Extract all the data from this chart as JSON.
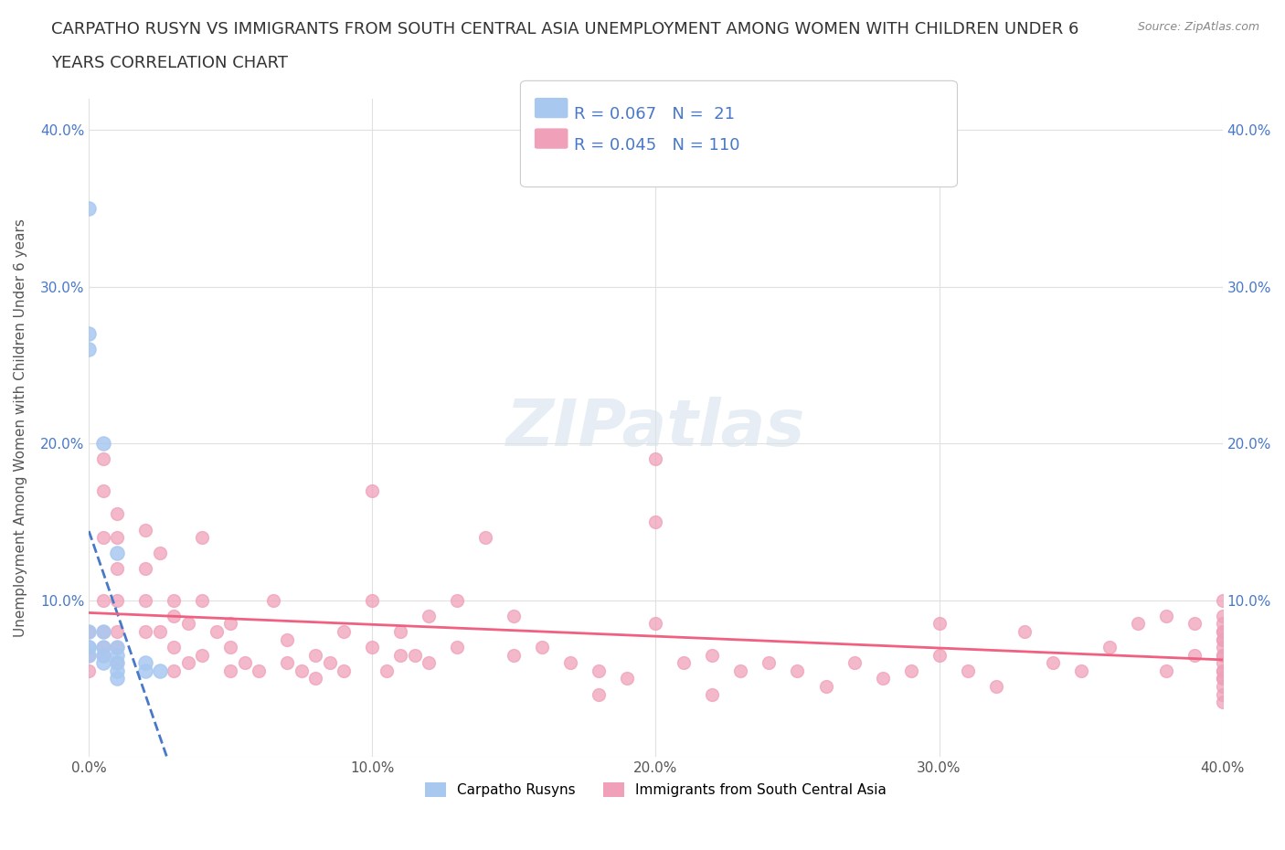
{
  "title_line1": "CARPATHO RUSYN VS IMMIGRANTS FROM SOUTH CENTRAL ASIA UNEMPLOYMENT AMONG WOMEN WITH CHILDREN UNDER 6",
  "title_line2": "YEARS CORRELATION CHART",
  "source": "Source: ZipAtlas.com",
  "ylabel": "Unemployment Among Women with Children Under 6 years",
  "xlim": [
    0.0,
    0.4
  ],
  "ylim": [
    0.0,
    0.42
  ],
  "xticks": [
    0.0,
    0.1,
    0.2,
    0.3,
    0.4
  ],
  "yticks": [
    0.0,
    0.1,
    0.2,
    0.3,
    0.4
  ],
  "xtick_labels": [
    "0.0%",
    "10.0%",
    "20.0%",
    "30.0%",
    "40.0%"
  ],
  "ytick_labels": [
    "",
    "10.0%",
    "20.0%",
    "30.0%",
    "40.0%"
  ],
  "legend": {
    "carpatho_label": "Carpatho Rusyns",
    "immigrants_label": "Immigrants from South Central Asia",
    "carpatho_R": "0.067",
    "carpatho_N": "21",
    "immigrants_R": "0.045",
    "immigrants_N": "110"
  },
  "carpatho_color": "#a8c8f0",
  "immigrants_color": "#f0a0b8",
  "carpatho_line_color": "#4878c8",
  "immigrants_line_color": "#f06080",
  "background_color": "#ffffff",
  "grid_color": "#e0e0e0",
  "carpatho_x": [
    0.0,
    0.0,
    0.0,
    0.0,
    0.0,
    0.0,
    0.0,
    0.005,
    0.005,
    0.005,
    0.005,
    0.005,
    0.01,
    0.01,
    0.01,
    0.01,
    0.01,
    0.01,
    0.02,
    0.02,
    0.025
  ],
  "carpatho_y": [
    0.35,
    0.27,
    0.26,
    0.08,
    0.07,
    0.07,
    0.065,
    0.2,
    0.08,
    0.07,
    0.065,
    0.06,
    0.13,
    0.07,
    0.065,
    0.06,
    0.055,
    0.05,
    0.06,
    0.055,
    0.055
  ],
  "immigrants_x": [
    0.0,
    0.0,
    0.0,
    0.005,
    0.005,
    0.005,
    0.005,
    0.005,
    0.005,
    0.005,
    0.01,
    0.01,
    0.01,
    0.01,
    0.01,
    0.01,
    0.01,
    0.02,
    0.02,
    0.02,
    0.02,
    0.025,
    0.025,
    0.03,
    0.03,
    0.03,
    0.03,
    0.035,
    0.035,
    0.04,
    0.04,
    0.04,
    0.045,
    0.05,
    0.05,
    0.05,
    0.055,
    0.06,
    0.065,
    0.07,
    0.07,
    0.075,
    0.08,
    0.08,
    0.085,
    0.09,
    0.09,
    0.1,
    0.1,
    0.1,
    0.105,
    0.11,
    0.11,
    0.115,
    0.12,
    0.12,
    0.13,
    0.13,
    0.14,
    0.15,
    0.15,
    0.16,
    0.17,
    0.18,
    0.18,
    0.19,
    0.2,
    0.2,
    0.2,
    0.21,
    0.22,
    0.22,
    0.23,
    0.24,
    0.25,
    0.26,
    0.27,
    0.28,
    0.29,
    0.3,
    0.3,
    0.31,
    0.32,
    0.33,
    0.34,
    0.35,
    0.36,
    0.37,
    0.38,
    0.38,
    0.39,
    0.39,
    0.4,
    0.4,
    0.4,
    0.4,
    0.4,
    0.4,
    0.4,
    0.4,
    0.4,
    0.4,
    0.4,
    0.4,
    0.4,
    0.4,
    0.4,
    0.4,
    0.4,
    0.4
  ],
  "immigrants_y": [
    0.08,
    0.065,
    0.055,
    0.19,
    0.17,
    0.14,
    0.1,
    0.08,
    0.07,
    0.065,
    0.155,
    0.14,
    0.12,
    0.1,
    0.08,
    0.07,
    0.06,
    0.145,
    0.12,
    0.1,
    0.08,
    0.13,
    0.08,
    0.1,
    0.09,
    0.07,
    0.055,
    0.085,
    0.06,
    0.14,
    0.1,
    0.065,
    0.08,
    0.085,
    0.07,
    0.055,
    0.06,
    0.055,
    0.1,
    0.075,
    0.06,
    0.055,
    0.065,
    0.05,
    0.06,
    0.08,
    0.055,
    0.17,
    0.1,
    0.07,
    0.055,
    0.065,
    0.08,
    0.065,
    0.09,
    0.06,
    0.1,
    0.07,
    0.14,
    0.09,
    0.065,
    0.07,
    0.06,
    0.055,
    0.04,
    0.05,
    0.19,
    0.15,
    0.085,
    0.06,
    0.065,
    0.04,
    0.055,
    0.06,
    0.055,
    0.045,
    0.06,
    0.05,
    0.055,
    0.085,
    0.065,
    0.055,
    0.045,
    0.08,
    0.06,
    0.055,
    0.07,
    0.085,
    0.09,
    0.055,
    0.085,
    0.065,
    0.1,
    0.085,
    0.08,
    0.075,
    0.07,
    0.065,
    0.06,
    0.055,
    0.05,
    0.045,
    0.04,
    0.035,
    0.09,
    0.08,
    0.075,
    0.065,
    0.055,
    0.05
  ]
}
